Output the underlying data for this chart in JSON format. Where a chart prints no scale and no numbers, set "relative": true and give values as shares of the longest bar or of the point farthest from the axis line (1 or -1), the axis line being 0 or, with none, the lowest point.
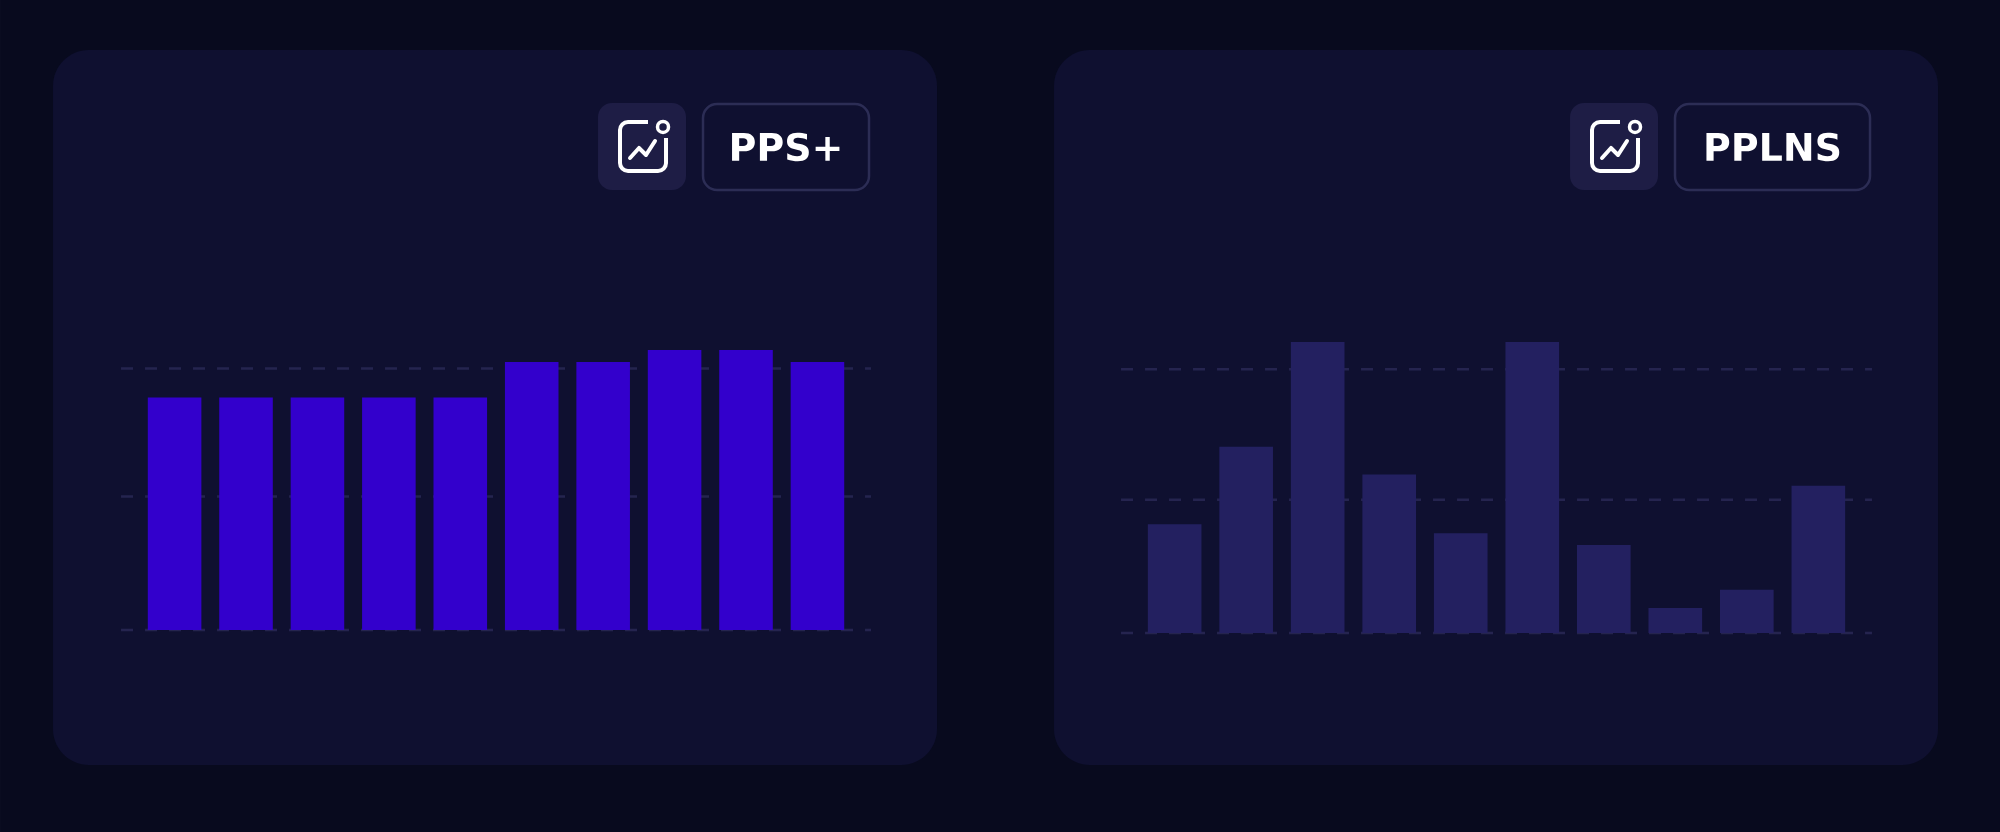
{
  "chart_data": [
    {
      "type": "bar",
      "title": "PPS+",
      "categories": [
        null,
        null,
        null,
        null,
        null,
        null,
        null,
        null,
        null,
        null
      ],
      "values": [
        0.83,
        0.83,
        0.83,
        0.83,
        0.83,
        0.957,
        0.957,
        1,
        1,
        0.957
      ],
      "color": "#3300cc",
      "relative": true,
      "ref_lines": [
        {
          "axis": "y",
          "value": 0,
          "color": "#25244f",
          "line_style": "dashed"
        },
        {
          "axis": "y",
          "value": 0.934,
          "color": "#25244f",
          "line_style": "dashed"
        },
        {
          "axis": "y",
          "value": 0.477,
          "color": "#25244f",
          "line_style": "dashed"
        }
      ]
    },
    {
      "type": "bar",
      "title": "PPLNS",
      "categories": [
        null,
        null,
        null,
        null,
        null,
        null,
        null,
        null,
        null,
        null
      ],
      "values": [
        0.374,
        0.64,
        1,
        0.545,
        0.343,
        1,
        0.302,
        0.086,
        0.149,
        0.506
      ],
      "color": "#232060",
      "relative": true,
      "ref_lines": [
        {
          "axis": "y",
          "value": 0,
          "color": "#25244f",
          "line_style": "dashed"
        },
        {
          "axis": "y",
          "value": 0.906,
          "color": "#25244f",
          "line_style": "dashed"
        },
        {
          "axis": "y",
          "value": 0.458,
          "color": "#25244f",
          "line_style": "dashed"
        }
      ]
    }
  ]
}
